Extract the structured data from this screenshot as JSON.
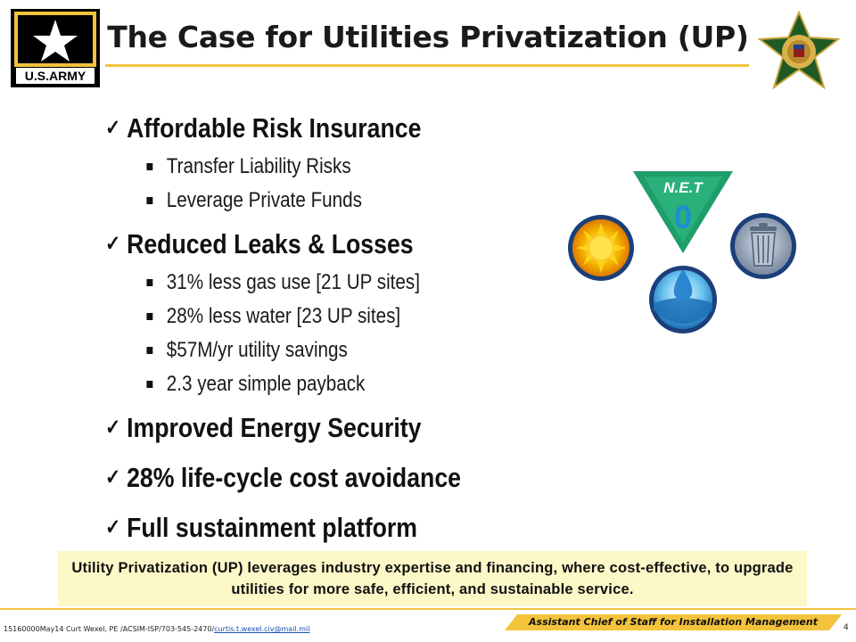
{
  "header": {
    "title": "The Case for Utilities Privatization (UP)",
    "logo_text": "U.S.ARMY"
  },
  "bullets": [
    {
      "label": "Affordable Risk Insurance",
      "sub": [
        "Transfer Liability Risks",
        "Leverage Private Funds"
      ]
    },
    {
      "label": "Reduced Leaks & Losses",
      "sub": [
        "31% less gas use [21 UP sites]",
        "28% less water [23 UP sites]",
        "$57M/yr utility savings",
        "2.3 year simple payback"
      ]
    },
    {
      "label": "Improved Energy Security",
      "sub": []
    },
    {
      "label": "28% life-cycle cost avoidance",
      "sub": []
    },
    {
      "label": "Full sustainment platform",
      "sub": []
    }
  ],
  "net_zero": {
    "label": "N.E.T",
    "digit": "0"
  },
  "callout": {
    "text": "Utility Privatization (UP) leverages industry expertise and financing, where cost-effective, to upgrade utilities for more safe, efficient, and sustainable service."
  },
  "footer": {
    "meta": "15160000May14 Curt Wexel, PE /ACSIM-ISP/703-545-2470/",
    "email": "curtis.t.wexel.civ@mail.mil",
    "org": "Assistant Chief of Staff for Installation Management",
    "page": "4"
  },
  "colors": {
    "gold": "#f3c33c",
    "callout_bg": "#fcf8c8",
    "net_green": "#1f9d6a",
    "net_blue": "#1b8fd4"
  }
}
